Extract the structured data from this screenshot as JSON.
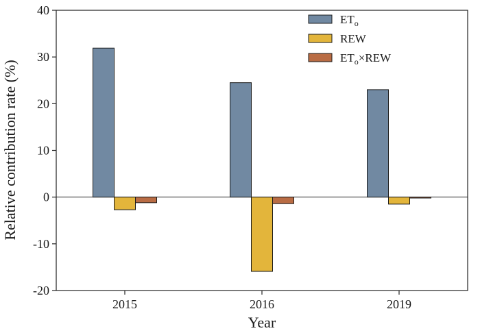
{
  "chart_data": {
    "type": "bar",
    "title": "",
    "xlabel": "Year",
    "ylabel": "Relative contribution rate (%)",
    "categories": [
      "2015",
      "2016",
      "2019"
    ],
    "ylim": [
      -20,
      40
    ],
    "yticks": [
      -20,
      -10,
      0,
      10,
      20,
      30,
      40
    ],
    "ytick_labels": [
      "-20",
      "-10",
      "0",
      "10",
      "20",
      "30",
      "40"
    ],
    "grid": false,
    "legend_position": "top-right",
    "series": [
      {
        "name": "ET",
        "name_subscript": "o",
        "name_suffix": "",
        "color": "#7189a2",
        "values": [
          31.9,
          24.5,
          23.0
        ]
      },
      {
        "name": "REW",
        "name_subscript": "",
        "name_suffix": "",
        "color": "#e3b53b",
        "values": [
          -2.7,
          -15.9,
          -1.5
        ]
      },
      {
        "name": "ET",
        "name_subscript": "o",
        "name_suffix": "×REW",
        "color": "#b96c44",
        "values": [
          -1.2,
          -1.4,
          -0.2
        ]
      }
    ]
  }
}
